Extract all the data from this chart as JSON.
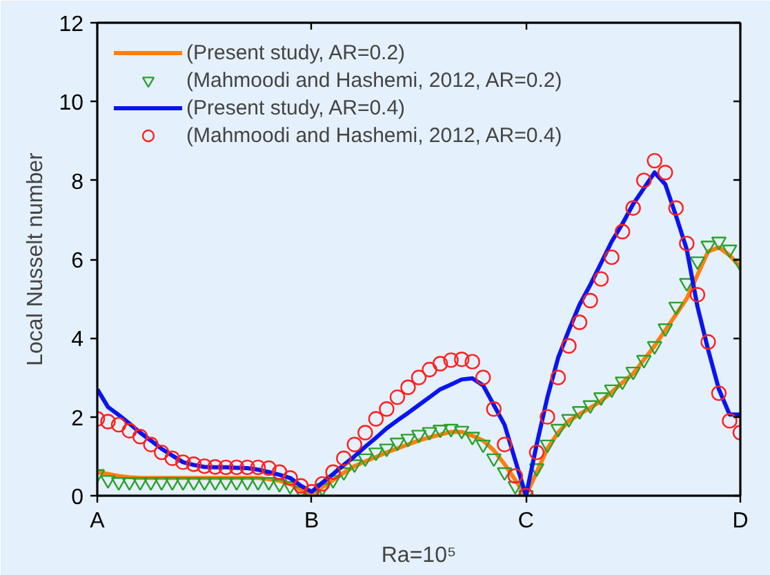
{
  "chart_data": {
    "type": "line",
    "xlabel": "Ra=10⁵",
    "ylabel": "Local Nusselt number",
    "categories": [
      "A",
      null,
      null,
      null,
      null,
      null,
      null,
      null,
      null,
      null,
      null,
      null,
      null,
      null,
      null,
      null,
      null,
      null,
      null,
      null,
      "B",
      null,
      null,
      null,
      null,
      null,
      null,
      null,
      null,
      null,
      null,
      null,
      null,
      null,
      null,
      null,
      null,
      null,
      null,
      null,
      "C",
      null,
      null,
      null,
      null,
      null,
      null,
      null,
      null,
      null,
      null,
      null,
      null,
      null,
      null,
      null,
      null,
      null,
      null,
      null,
      "D"
    ],
    "ylim": [
      0,
      12
    ],
    "yticks": [
      0,
      2,
      4,
      6,
      8,
      10,
      12
    ],
    "grid": false,
    "legend": "top left",
    "series": [
      {
        "name": "(Present study, AR=0.2)",
        "color": "#ff7f0e",
        "values": [
          0.6,
          0.55,
          0.5,
          0.47,
          0.45,
          0.45,
          0.45,
          0.45,
          0.45,
          0.45,
          0.45,
          0.45,
          0.45,
          0.45,
          0.45,
          0.45,
          0.42,
          0.38,
          0.3,
          0.15,
          0.05,
          0.22,
          0.4,
          0.58,
          0.75,
          0.87,
          0.98,
          1.1,
          1.2,
          1.3,
          1.4,
          1.48,
          1.55,
          1.62,
          1.62,
          1.52,
          1.4,
          1.15,
          0.8,
          0.4,
          0.0,
          0.6,
          1.2,
          1.6,
          1.9,
          2.07,
          2.23,
          2.4,
          2.63,
          2.87,
          3.1,
          3.45,
          3.8,
          4.2,
          4.6,
          5.0,
          5.6,
          6.2,
          6.3,
          6.1,
          5.8
        ]
      },
      {
        "name": "(Mahmoodi and Hashemi, 2012, AR=0.2)",
        "type": "scatter",
        "marker": "triangle",
        "color": "#2ca02c",
        "values": [
          0.55,
          0.4,
          0.35,
          0.35,
          0.35,
          0.35,
          0.35,
          0.35,
          0.35,
          0.35,
          0.35,
          0.35,
          0.35,
          0.35,
          0.35,
          0.35,
          0.35,
          0.3,
          0.25,
          0.12,
          0.02,
          0.2,
          0.4,
          0.6,
          0.8,
          0.95,
          1.1,
          1.2,
          1.35,
          1.45,
          1.55,
          1.62,
          1.68,
          1.7,
          1.65,
          1.5,
          1.3,
          0.95,
          0.6,
          0.25,
          0.02,
          0.7,
          1.3,
          1.7,
          1.95,
          2.15,
          2.3,
          2.5,
          2.7,
          2.9,
          3.15,
          3.45,
          3.8,
          4.25,
          4.8,
          5.4,
          5.95,
          6.35,
          6.45,
          6.25,
          5.9
        ]
      },
      {
        "name": "(Present study, AR=0.4)",
        "color": "#0a14f0",
        "values": [
          2.7,
          2.25,
          2.05,
          1.83,
          1.6,
          1.4,
          1.19,
          1.02,
          0.85,
          0.78,
          0.73,
          0.72,
          0.72,
          0.71,
          0.7,
          0.66,
          0.6,
          0.53,
          0.45,
          0.25,
          0.1,
          0.33,
          0.55,
          0.78,
          1.0,
          1.24,
          1.47,
          1.71,
          1.91,
          2.1,
          2.3,
          2.5,
          2.7,
          2.82,
          2.95,
          2.98,
          2.8,
          2.3,
          1.8,
          0.9,
          0.0,
          1.3,
          2.5,
          3.5,
          4.2,
          4.85,
          5.35,
          5.9,
          6.45,
          6.9,
          7.4,
          7.8,
          8.2,
          7.9,
          7.1,
          6.25,
          4.8,
          3.7,
          2.7,
          2.06,
          2.06
        ]
      },
      {
        "name": "(Mahmoodi and Hashemi, 2012, AR=0.4)",
        "type": "scatter",
        "marker": "circle",
        "color": "#ff2020",
        "values": [
          1.95,
          1.88,
          1.8,
          1.65,
          1.5,
          1.3,
          1.1,
          0.95,
          0.85,
          0.8,
          0.75,
          0.73,
          0.72,
          0.72,
          0.72,
          0.72,
          0.7,
          0.6,
          0.45,
          0.25,
          0.1,
          0.3,
          0.6,
          0.95,
          1.3,
          1.6,
          1.95,
          2.2,
          2.5,
          2.75,
          3.0,
          3.2,
          3.35,
          3.44,
          3.46,
          3.4,
          3.0,
          2.2,
          1.3,
          0.5,
          0.0,
          1.1,
          2.0,
          3.0,
          3.8,
          4.4,
          4.95,
          5.5,
          6.05,
          6.7,
          7.3,
          8.0,
          8.5,
          8.2,
          7.3,
          6.4,
          5.1,
          3.9,
          2.6,
          1.9,
          1.6
        ]
      }
    ]
  }
}
